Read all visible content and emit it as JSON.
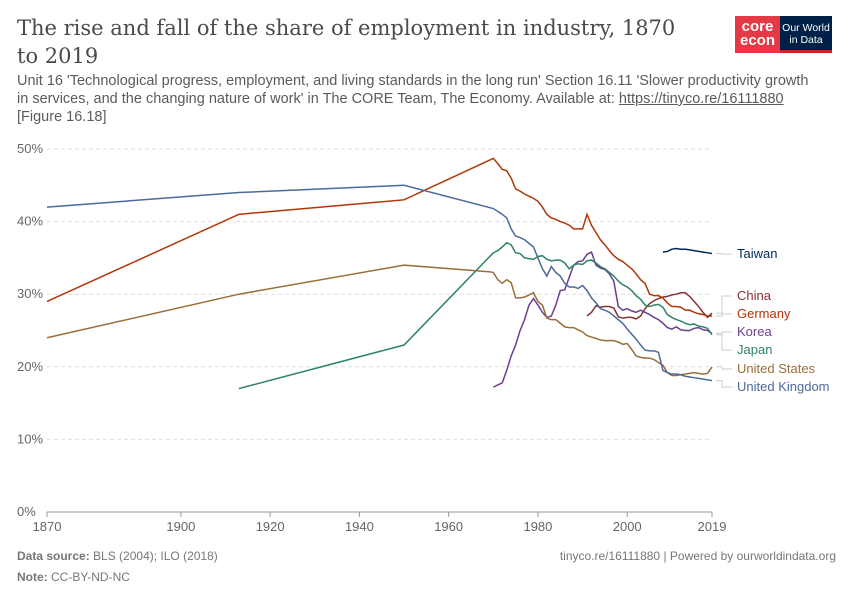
{
  "title": "The rise and fall of the share of employment in industry, 1870 to 2019",
  "subtitle": "Unit 16 'Technological progress, employment, and living standards in the long run' Section 16.11 'Slower productivity growth in services, and the changing nature of work' in The CORE Team, The Economy. Available at:",
  "subtitle_link": "https://tinyco.re/16111880",
  "subtitle_tail": " [Figure 16.18]",
  "logo": {
    "core": "core econ",
    "owid": "Our World in Data"
  },
  "footer": {
    "source_label": "Data source:",
    "source": " BLS (2004); ILO (2018)",
    "note_label": "Note:",
    "note": " CC-BY-ND-NC",
    "right": "tinyco.re/16111880 | Powered by ourworldindata.org"
  },
  "chart_data": {
    "type": "line",
    "xlim": [
      1870,
      2019
    ],
    "ylim": [
      0,
      50
    ],
    "x_ticks": [
      "1870",
      "1900",
      "1920",
      "1940",
      "1960",
      "1980",
      "2000",
      "2019"
    ],
    "y_ticks": [
      "0%",
      "10%",
      "20%",
      "30%",
      "40%",
      "50%"
    ],
    "grid": "horizontal dashed",
    "legend": "right, labels at line ends",
    "series": [
      {
        "name": "Taiwan",
        "color": "#00295B",
        "x": [
          2008,
          2009,
          2010,
          2011,
          2012,
          2013,
          2014,
          2015,
          2016,
          2017,
          2018,
          2019
        ],
        "y": [
          35.8,
          35.9,
          36.2,
          36.3,
          36.2,
          36.2,
          36.1,
          36,
          35.9,
          35.8,
          35.7,
          35.6
        ]
      },
      {
        "name": "China",
        "color": "#883039",
        "x": [
          1991,
          1992,
          1993,
          1994,
          1995,
          1996,
          1997,
          1998,
          1999,
          2000,
          2001,
          2002,
          2003,
          2004,
          2005,
          2006,
          2007,
          2008,
          2009,
          2010,
          2011,
          2012,
          2013,
          2014,
          2015,
          2016,
          2017,
          2018,
          2019
        ],
        "y": [
          27,
          27.5,
          28.4,
          28.2,
          28.3,
          28.3,
          28.1,
          26.9,
          26.7,
          26.8,
          26.8,
          26.6,
          27,
          28,
          28.7,
          29.1,
          29.4,
          29.6,
          29.7,
          29.9,
          30,
          30.2,
          30.2,
          29.7,
          29,
          28.3,
          27.5,
          26.8,
          27.4
        ]
      },
      {
        "name": "Germany",
        "color": "#B13507",
        "x": [
          1870,
          1913,
          1950,
          1970,
          1971,
          1972,
          1973,
          1974,
          1975,
          1976,
          1977,
          1978,
          1979,
          1980,
          1981,
          1982,
          1983,
          1984,
          1985,
          1986,
          1987,
          1988,
          1989,
          1990,
          1991,
          1992,
          1993,
          1994,
          1995,
          1996,
          1997,
          1998,
          1999,
          2000,
          2001,
          2002,
          2003,
          2004,
          2005,
          2006,
          2007,
          2008,
          2009,
          2010,
          2011,
          2012,
          2013,
          2014,
          2015,
          2016,
          2017,
          2018,
          2019
        ],
        "y": [
          29,
          41,
          43,
          48.7,
          48,
          47.2,
          47,
          46,
          44.5,
          44.2,
          43.8,
          43.5,
          43.2,
          42.8,
          42,
          41,
          40.5,
          40.3,
          40,
          39.8,
          39.5,
          39,
          39,
          39,
          41,
          39.5,
          38.5,
          37.5,
          36.8,
          36,
          35.3,
          34.8,
          34.5,
          34,
          33.5,
          32.8,
          32,
          31.5,
          30,
          29.8,
          29.8,
          29.5,
          28.8,
          28.3,
          28.3,
          28.2,
          27.8,
          27.8,
          27.5,
          27.3,
          27.2,
          27,
          27
        ]
      },
      {
        "name": "Korea",
        "color": "#6D3E91",
        "x": [
          1970,
          1971,
          1972,
          1973,
          1974,
          1975,
          1976,
          1977,
          1978,
          1979,
          1980,
          1981,
          1982,
          1983,
          1984,
          1985,
          1986,
          1987,
          1988,
          1989,
          1990,
          1991,
          1992,
          1993,
          1994,
          1995,
          1996,
          1997,
          1998,
          1999,
          2000,
          2001,
          2002,
          2003,
          2004,
          2005,
          2006,
          2007,
          2008,
          2009,
          2010,
          2011,
          2012,
          2013,
          2014,
          2015,
          2016,
          2017,
          2018,
          2019
        ],
        "y": [
          17.2,
          17.5,
          17.8,
          19.5,
          21.5,
          23,
          25,
          26.5,
          28.5,
          29.4,
          28.5,
          27.5,
          26.8,
          27,
          28.5,
          30.5,
          30.6,
          32.3,
          34,
          34.5,
          34.6,
          35.5,
          35.8,
          34,
          33.6,
          33.4,
          32.8,
          31.8,
          28.3,
          27.8,
          28,
          27.7,
          27.5,
          27.8,
          27.5,
          27.2,
          26.8,
          26.5,
          26,
          25.4,
          25.2,
          25.5,
          25.1,
          25,
          25,
          25.3,
          25.4,
          25.1,
          25,
          24.6
        ]
      },
      {
        "name": "Japan",
        "color": "#2C8465",
        "x": [
          1913,
          1950,
          1970,
          1971,
          1972,
          1973,
          1974,
          1975,
          1976,
          1977,
          1978,
          1979,
          1980,
          1981,
          1982,
          1983,
          1984,
          1985,
          1986,
          1987,
          1988,
          1989,
          1990,
          1991,
          1992,
          1993,
          1994,
          1995,
          1996,
          1997,
          1998,
          1999,
          2000,
          2001,
          2002,
          2003,
          2004,
          2005,
          2006,
          2007,
          2008,
          2009,
          2010,
          2011,
          2012,
          2013,
          2014,
          2015,
          2016,
          2017,
          2018,
          2019
        ],
        "y": [
          17,
          23,
          35.7,
          36,
          36.5,
          37.1,
          36.8,
          35.7,
          35.6,
          35,
          34.9,
          34.8,
          35.2,
          35.3,
          34.8,
          34.6,
          34.7,
          34.7,
          34.3,
          33.5,
          34,
          34.2,
          34.1,
          34.6,
          34.7,
          34.3,
          33.8,
          33.5,
          33,
          32.5,
          31.8,
          31.3,
          31,
          30.5,
          29.8,
          29.3,
          28.5,
          28.3,
          28.5,
          28.6,
          28.2,
          27.2,
          26.8,
          26.5,
          26.3,
          26,
          25.8,
          25.9,
          25.6,
          25.5,
          25.3,
          24.4
        ]
      },
      {
        "name": "United States",
        "color": "#996D39",
        "x": [
          1870,
          1913,
          1950,
          1969,
          1970,
          1971,
          1972,
          1973,
          1974,
          1975,
          1976,
          1977,
          1978,
          1979,
          1980,
          1981,
          1982,
          1983,
          1984,
          1985,
          1986,
          1987,
          1988,
          1989,
          1990,
          1991,
          1992,
          1993,
          1994,
          1995,
          1996,
          1997,
          1998,
          1999,
          2000,
          2001,
          2002,
          2003,
          2004,
          2005,
          2006,
          2007,
          2008,
          2009,
          2010,
          2011,
          2012,
          2013,
          2014,
          2015,
          2016,
          2017,
          2018,
          2019
        ],
        "y": [
          24,
          30,
          34,
          33.1,
          33,
          32,
          31.5,
          32,
          31.6,
          29.5,
          29.5,
          29.6,
          29.9,
          30.2,
          29,
          28.5,
          26.7,
          26.5,
          26.5,
          26,
          25.5,
          25.4,
          25.4,
          25.1,
          24.8,
          24.3,
          24.1,
          23.9,
          23.7,
          23.6,
          23.6,
          23.6,
          23.4,
          23.1,
          23.2,
          22.4,
          21.5,
          21.3,
          21.2,
          21.2,
          21,
          20.6,
          20.2,
          19.2,
          18.8,
          18.8,
          18.9,
          19,
          19.1,
          19.2,
          19.1,
          19,
          19.1,
          20
        ]
      },
      {
        "name": "United Kingdom",
        "color": "#4C6A9C",
        "x": [
          1870,
          1913,
          1950,
          1970,
          1972,
          1973,
          1974,
          1975,
          1976,
          1977,
          1978,
          1979,
          1980,
          1981,
          1982,
          1983,
          1984,
          1985,
          1986,
          1987,
          1988,
          1989,
          1990,
          1991,
          1992,
          1993,
          1994,
          1995,
          1996,
          1997,
          1998,
          1999,
          2000,
          2001,
          2002,
          2003,
          2004,
          2005,
          2006,
          2007,
          2008,
          2009,
          2010,
          2011,
          2012,
          2013,
          2014,
          2015,
          2016,
          2017,
          2018,
          2019
        ],
        "y": [
          42,
          44,
          45,
          41.8,
          41,
          40.5,
          39,
          38,
          37.8,
          37.5,
          37,
          36.5,
          35,
          33.5,
          32.5,
          33.8,
          33,
          32.5,
          31.5,
          31,
          31,
          30.8,
          31.2,
          30.5,
          29.5,
          28.8,
          28,
          27.8,
          27.5,
          27,
          26.5,
          26,
          25.2,
          24.5,
          23.8,
          23,
          22.3,
          22.2,
          22.2,
          22,
          19.5,
          19.2,
          19,
          19,
          18.9,
          18.7,
          18.6,
          18.5,
          18.4,
          18.3,
          18.2,
          18.1
        ]
      }
    ]
  }
}
